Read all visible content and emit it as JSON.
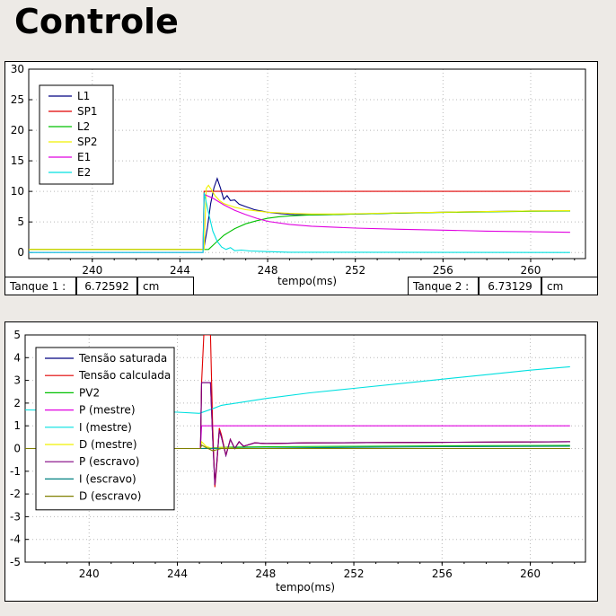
{
  "page": {
    "title": "Controle"
  },
  "status_bar": {
    "tank1": {
      "label": "Tanque 1 :",
      "value": "6.72592",
      "unit": "cm"
    },
    "tank2": {
      "label": "Tanque 2 :",
      "value": "6.73129",
      "unit": "cm"
    }
  },
  "chart_data": [
    {
      "type": "line",
      "xlabel": "tempo(ms)",
      "ylabel": "",
      "xlim": [
        237.1,
        262.5
      ],
      "ylim": [
        -1,
        30
      ],
      "xticks": [
        240,
        244,
        248,
        252,
        256,
        260
      ],
      "xtick_labels": [
        "240",
        "244",
        "248",
        "252",
        "256",
        "260"
      ],
      "yticks": [
        0,
        5,
        10,
        15,
        20,
        25,
        30
      ],
      "ytick_labels": [
        "0",
        "5",
        "10",
        "15",
        "20",
        "25",
        "30"
      ],
      "grid": true,
      "legend": "top-left",
      "series": [
        {
          "name": "L1",
          "color": "#000080",
          "x": [
            237.1,
            245.08,
            245.25,
            245.4,
            245.55,
            245.7,
            245.85,
            246.0,
            246.15,
            246.3,
            246.5,
            246.7,
            247.0,
            247.4,
            248.0,
            248.6,
            249.2,
            250.0,
            251.0,
            252.0,
            254.0,
            256.0,
            258.0,
            260.0,
            261.8
          ],
          "y": [
            0.5,
            0.5,
            4.0,
            8.0,
            10.6,
            12.1,
            10.5,
            8.7,
            9.3,
            8.5,
            8.6,
            7.9,
            7.5,
            7.0,
            6.6,
            6.35,
            6.2,
            6.15,
            6.2,
            6.3,
            6.45,
            6.6,
            6.7,
            6.8,
            6.8
          ]
        },
        {
          "name": "SP1",
          "color": "#e00000",
          "x": [
            237.1,
            245.05,
            245.1,
            261.8
          ],
          "y": [
            0.5,
            0.5,
            10.0,
            10.0
          ]
        },
        {
          "name": "L2",
          "color": "#00c000",
          "x": [
            237.1,
            245.3,
            245.6,
            246.0,
            246.5,
            247.0,
            247.5,
            248.0,
            248.5,
            249.0,
            250.0,
            251.0,
            252.0,
            254.0,
            256.0,
            258.0,
            260.0,
            261.8
          ],
          "y": [
            0.5,
            0.5,
            1.5,
            2.8,
            3.9,
            4.7,
            5.2,
            5.6,
            5.85,
            6.0,
            6.15,
            6.2,
            6.3,
            6.45,
            6.55,
            6.65,
            6.75,
            6.8
          ]
        },
        {
          "name": "SP2",
          "color": "#f0f000",
          "x": [
            237.1,
            245.1,
            245.2,
            245.3,
            245.45,
            245.6,
            245.8,
            246.0,
            246.5,
            247.0,
            247.5,
            248.0,
            249.0,
            250.0,
            251.0,
            252.0,
            254.0,
            256.0,
            258.0,
            260.0,
            261.8
          ],
          "y": [
            0.5,
            0.5,
            10.5,
            11.0,
            10.2,
            9.3,
            8.5,
            8.0,
            7.4,
            7.0,
            6.8,
            6.6,
            6.4,
            6.3,
            6.3,
            6.35,
            6.5,
            6.6,
            6.7,
            6.8,
            6.85
          ]
        },
        {
          "name": "E1",
          "color": "#e000e0",
          "x": [
            237.1,
            245.05,
            245.1,
            245.5,
            246.0,
            246.5,
            247.0,
            247.5,
            248.0,
            249.0,
            250.0,
            252.0,
            254.0,
            256.0,
            258.0,
            260.0,
            261.8
          ],
          "y": [
            0.0,
            0.0,
            9.5,
            8.9,
            7.8,
            6.9,
            6.2,
            5.6,
            5.1,
            4.6,
            4.3,
            4.0,
            3.8,
            3.65,
            3.5,
            3.4,
            3.3
          ]
        },
        {
          "name": "E2",
          "color": "#00e0e0",
          "x": [
            237.1,
            245.05,
            245.1,
            245.3,
            245.5,
            245.7,
            245.9,
            246.1,
            246.3,
            246.5,
            246.8,
            247.2,
            248.0,
            249.0,
            261.8
          ],
          "y": [
            0.0,
            0.0,
            9.8,
            6.5,
            3.5,
            1.8,
            0.9,
            0.5,
            0.8,
            0.3,
            0.4,
            0.25,
            0.15,
            0.05,
            0.0
          ]
        }
      ]
    },
    {
      "type": "line",
      "xlabel": "tempo(ms)",
      "ylabel": "",
      "xlim": [
        237.1,
        262.5
      ],
      "ylim": [
        -5,
        5
      ],
      "xticks": [
        240,
        244,
        248,
        252,
        256,
        260
      ],
      "xtick_labels": [
        "240",
        "244",
        "248",
        "252",
        "256",
        "260"
      ],
      "yticks": [
        -5,
        -4,
        -3,
        -2,
        -1,
        0,
        1,
        2,
        3,
        4,
        5
      ],
      "ytick_labels": [
        "-5",
        "-4",
        "-3",
        "-2",
        "-1",
        "0",
        "1",
        "2",
        "3",
        "4",
        "5"
      ],
      "grid": true,
      "legend": "top-left",
      "series": [
        {
          "name": "Tensão saturada",
          "color": "#000080",
          "x": [
            237.1,
            245.05,
            245.1,
            245.15,
            245.4,
            245.5,
            245.6,
            245.7,
            245.8,
            245.9,
            246.0,
            246.2,
            246.4,
            246.6,
            246.8,
            247.0,
            247.5,
            248.0,
            250.0,
            255.0,
            261.8
          ],
          "y": [
            0.0,
            0.0,
            2.9,
            2.9,
            2.9,
            2.9,
            0.5,
            -1.6,
            -0.5,
            0.8,
            0.5,
            -0.3,
            0.4,
            0.0,
            0.3,
            0.1,
            0.25,
            0.22,
            0.25,
            0.27,
            0.3
          ]
        },
        {
          "name": "Tensão calculada",
          "color": "#e00000",
          "x": [
            237.1,
            245.05,
            245.1,
            245.2,
            245.35,
            245.5,
            245.6,
            245.7,
            245.8,
            245.9,
            246.0,
            246.2,
            246.4,
            246.6,
            246.8,
            247.0,
            247.5,
            248.0,
            250.0,
            255.0,
            261.8
          ],
          "y": [
            0.0,
            0.0,
            2.9,
            5.0,
            5.0,
            5.0,
            1.0,
            -1.7,
            -0.6,
            0.9,
            0.6,
            -0.3,
            0.4,
            0.0,
            0.3,
            0.1,
            0.25,
            0.22,
            0.25,
            0.27,
            0.3
          ]
        },
        {
          "name": "PV2",
          "color": "#00c000",
          "x": [
            237.1,
            245.1,
            245.5,
            246.0,
            248.0,
            252.0,
            256.0,
            261.8
          ],
          "y": [
            0.0,
            0.0,
            0.02,
            0.05,
            0.08,
            0.1,
            0.12,
            0.14
          ]
        },
        {
          "name": "P (mestre)",
          "color": "#e000e0",
          "x": [
            237.1,
            245.05,
            245.1,
            261.8
          ],
          "y": [
            0.0,
            0.0,
            1.0,
            1.0
          ]
        },
        {
          "name": "I (mestre)",
          "color": "#00e0e0",
          "x": [
            237.1,
            241.0,
            244.0,
            245.0,
            245.6,
            246.0,
            248.0,
            250.0,
            252.0,
            254.0,
            256.0,
            258.0,
            260.0,
            261.8
          ],
          "y": [
            1.7,
            1.65,
            1.6,
            1.55,
            1.75,
            1.9,
            2.2,
            2.45,
            2.65,
            2.85,
            3.05,
            3.25,
            3.45,
            3.6
          ]
        },
        {
          "name": "D (mestre)",
          "color": "#f0f000",
          "x": [
            237.1,
            245.05,
            245.1,
            245.3,
            245.6,
            246.0,
            247.0,
            261.8
          ],
          "y": [
            0.0,
            0.0,
            0.3,
            0.1,
            0.0,
            0.05,
            0.0,
            0.0
          ]
        },
        {
          "name": "P (escravo)",
          "color": "#800080",
          "x": [
            237.1,
            245.05,
            245.1,
            245.15,
            245.4,
            245.5,
            245.6,
            245.7,
            245.8,
            245.9,
            246.0,
            246.2,
            246.4,
            246.6,
            246.8,
            247.0,
            247.5,
            248.0,
            250.0,
            255.0,
            261.8
          ],
          "y": [
            0.0,
            0.0,
            2.9,
            2.9,
            2.9,
            2.9,
            0.5,
            -1.6,
            -0.5,
            0.8,
            0.5,
            -0.3,
            0.4,
            0.0,
            0.3,
            0.1,
            0.25,
            0.22,
            0.25,
            0.27,
            0.3
          ]
        },
        {
          "name": "I (escravo)",
          "color": "#008080",
          "x": [
            237.1,
            245.1,
            248.0,
            252.0,
            256.0,
            261.8
          ],
          "y": [
            0.0,
            0.0,
            0.02,
            0.05,
            0.08,
            0.1
          ]
        },
        {
          "name": "D (escravo)",
          "color": "#808000",
          "x": [
            237.1,
            245.05,
            245.1,
            245.6,
            246.0,
            261.8
          ],
          "y": [
            0.0,
            0.0,
            0.15,
            -0.1,
            0.0,
            0.0
          ]
        }
      ]
    }
  ]
}
